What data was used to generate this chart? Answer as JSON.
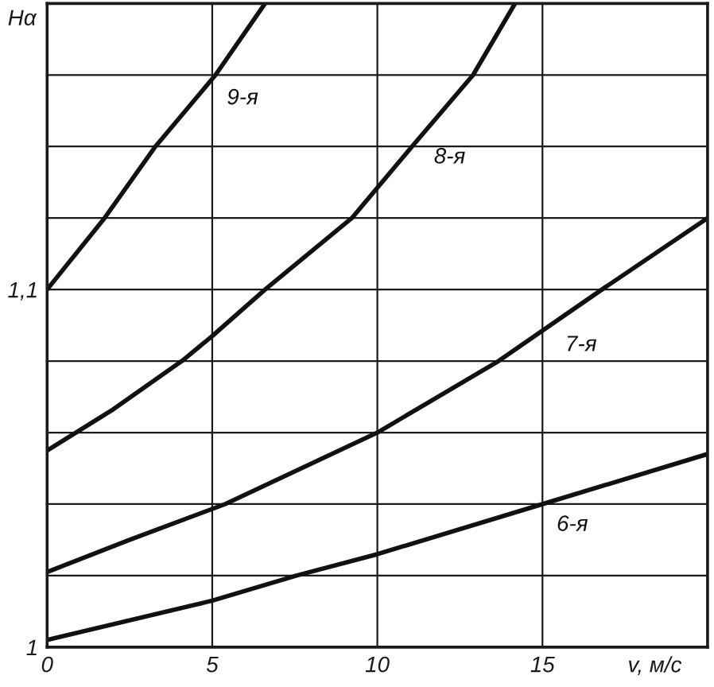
{
  "chart_data": {
    "type": "line",
    "xlabel": "v, м/с",
    "ylabel": "Hα",
    "xlim": [
      0,
      20
    ],
    "ylim": [
      1,
      1.18
    ],
    "xticks": [
      0,
      5,
      10,
      15
    ],
    "yticks": [
      1,
      {
        "value": 1.02,
        "label": null
      },
      {
        "value": 1.04,
        "label": null
      },
      {
        "value": 1.06,
        "label": null
      },
      {
        "value": 1.08,
        "label": null
      },
      {
        "value": 1.1,
        "label": "1,1"
      },
      {
        "value": 1.12,
        "label": null
      },
      {
        "value": 1.14,
        "label": null
      },
      {
        "value": 1.16,
        "label": null
      }
    ],
    "grid": true,
    "line_style": "solid",
    "series": [
      {
        "name": "9-я",
        "color": "#111111",
        "x": [
          0,
          1.74,
          3.28,
          5.1,
          6.6
        ],
        "values": [
          1.1,
          1.12,
          1.14,
          1.16,
          1.18
        ]
      },
      {
        "name": "8-я",
        "color": "#111111",
        "x": [
          0,
          2,
          4.08,
          5,
          6.6,
          9.23,
          11.05,
          12.9,
          14.17
        ],
        "values": [
          1.055,
          1.0665,
          1.08,
          1.087,
          1.1,
          1.12,
          1.14,
          1.16,
          1.18
        ]
      },
      {
        "name": "7-я",
        "color": "#111111",
        "x": [
          0,
          2.5,
          5.39,
          10,
          13.67,
          16.8,
          20
        ],
        "values": [
          1.021,
          1.03,
          1.04,
          1.06,
          1.08,
          1.1,
          1.12
        ]
      },
      {
        "name": "6-я",
        "color": "#111111",
        "x": [
          0,
          5,
          7.55,
          10,
          15,
          20
        ],
        "values": [
          1.002,
          1.013,
          1.02,
          1.026,
          1.04,
          1.054
        ]
      }
    ]
  }
}
